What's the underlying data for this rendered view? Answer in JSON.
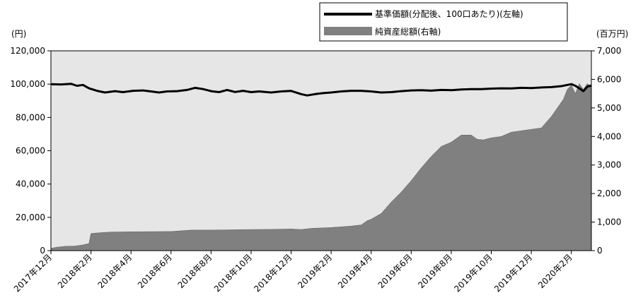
{
  "chart_data": {
    "type": "line+area",
    "title": "",
    "left_axis_unit": "(円)",
    "right_axis_unit": "(百万円)",
    "left_ylim": [
      0,
      120000
    ],
    "right_ylim": [
      0,
      7000
    ],
    "left_ticks": [
      "0",
      "20,000",
      "40,000",
      "60,000",
      "80,000",
      "100,000",
      "120,000"
    ],
    "right_ticks": [
      "0",
      "1,000",
      "2,000",
      "3,000",
      "4,000",
      "5,000",
      "6,000",
      "7,000"
    ],
    "x_tick_labels": [
      "2017年12月",
      "2018年2月",
      "2018年4月",
      "2018年6月",
      "2018年8月",
      "2018年10月",
      "2018年12月",
      "2019年2月",
      "2019年4月",
      "2019年6月",
      "2019年8月",
      "2019年10月",
      "2019年12月",
      "2020年2月"
    ],
    "x_range_months": [
      0,
      27
    ],
    "colors": {
      "plot_background": "#e6e6e6",
      "area": "#808080",
      "line": "#000000"
    },
    "series": [
      {
        "name": "基準価額(分配後、100口あたり)(左軸)",
        "axis": "left",
        "style": "line",
        "points": [
          [
            0,
            100000
          ],
          [
            0.5,
            99800
          ],
          [
            1,
            100200
          ],
          [
            1.3,
            99000
          ],
          [
            1.6,
            99500
          ],
          [
            1.9,
            97500
          ],
          [
            2.3,
            96000
          ],
          [
            2.7,
            95000
          ],
          [
            3.2,
            95800
          ],
          [
            3.6,
            95200
          ],
          [
            4.1,
            96000
          ],
          [
            4.6,
            96200
          ],
          [
            5.0,
            95600
          ],
          [
            5.4,
            95000
          ],
          [
            5.8,
            95600
          ],
          [
            6.3,
            95800
          ],
          [
            6.8,
            96500
          ],
          [
            7.2,
            97800
          ],
          [
            7.6,
            97000
          ],
          [
            8.0,
            95800
          ],
          [
            8.4,
            95200
          ],
          [
            8.8,
            96500
          ],
          [
            9.2,
            95300
          ],
          [
            9.6,
            96000
          ],
          [
            10.0,
            95200
          ],
          [
            10.4,
            95600
          ],
          [
            11.0,
            95000
          ],
          [
            11.5,
            95600
          ],
          [
            12.0,
            95900
          ],
          [
            12.5,
            94000
          ],
          [
            12.8,
            93200
          ],
          [
            13.2,
            94000
          ],
          [
            13.6,
            94600
          ],
          [
            14.0,
            95000
          ],
          [
            14.5,
            95600
          ],
          [
            15.0,
            96000
          ],
          [
            15.5,
            96000
          ],
          [
            16.0,
            95600
          ],
          [
            16.5,
            95000
          ],
          [
            17.0,
            95200
          ],
          [
            17.5,
            95800
          ],
          [
            18.0,
            96200
          ],
          [
            18.5,
            96400
          ],
          [
            19.0,
            96100
          ],
          [
            19.5,
            96500
          ],
          [
            20.0,
            96400
          ],
          [
            20.5,
            96800
          ],
          [
            21.0,
            97000
          ],
          [
            21.5,
            97000
          ],
          [
            22.0,
            97300
          ],
          [
            22.5,
            97500
          ],
          [
            23.0,
            97400
          ],
          [
            23.5,
            97800
          ],
          [
            24.0,
            97600
          ],
          [
            24.5,
            98000
          ],
          [
            25.0,
            98200
          ],
          [
            25.5,
            98800
          ],
          [
            25.8,
            99500
          ],
          [
            26.0,
            100000
          ],
          [
            26.2,
            99000
          ],
          [
            26.4,
            97500
          ],
          [
            26.6,
            95800
          ],
          [
            26.8,
            98500
          ],
          [
            27.0,
            99200
          ]
        ]
      },
      {
        "name": "純資産総額(右軸)",
        "axis": "right",
        "style": "area",
        "points": [
          [
            0,
            80
          ],
          [
            0.3,
            120
          ],
          [
            0.7,
            150
          ],
          [
            1.2,
            160
          ],
          [
            1.6,
            200
          ],
          [
            1.9,
            250
          ],
          [
            2.0,
            600
          ],
          [
            2.5,
            630
          ],
          [
            3,
            650
          ],
          [
            4,
            660
          ],
          [
            5,
            665
          ],
          [
            6,
            670
          ],
          [
            7,
            720
          ],
          [
            8,
            720
          ],
          [
            9,
            730
          ],
          [
            10,
            740
          ],
          [
            11,
            745
          ],
          [
            12,
            760
          ],
          [
            12.5,
            740
          ],
          [
            13,
            780
          ],
          [
            14,
            810
          ],
          [
            15,
            860
          ],
          [
            15.5,
            900
          ],
          [
            15.8,
            1050
          ],
          [
            16.0,
            1100
          ],
          [
            16.5,
            1300
          ],
          [
            17.0,
            1700
          ],
          [
            17.5,
            2050
          ],
          [
            18.0,
            2450
          ],
          [
            18.5,
            2900
          ],
          [
            19.0,
            3300
          ],
          [
            19.5,
            3650
          ],
          [
            20.0,
            3800
          ],
          [
            20.5,
            4050
          ],
          [
            21.0,
            4050
          ],
          [
            21.3,
            3900
          ],
          [
            21.6,
            3880
          ],
          [
            22.0,
            3950
          ],
          [
            22.5,
            4000
          ],
          [
            23.0,
            4150
          ],
          [
            23.5,
            4200
          ],
          [
            24.0,
            4250
          ],
          [
            24.5,
            4300
          ],
          [
            25.0,
            4700
          ],
          [
            25.3,
            5000
          ],
          [
            25.6,
            5300
          ],
          [
            25.8,
            5650
          ],
          [
            26.0,
            5800
          ],
          [
            26.2,
            5500
          ],
          [
            26.4,
            5850
          ],
          [
            26.6,
            5650
          ],
          [
            26.8,
            5850
          ],
          [
            27.0,
            5750
          ]
        ]
      }
    ]
  }
}
